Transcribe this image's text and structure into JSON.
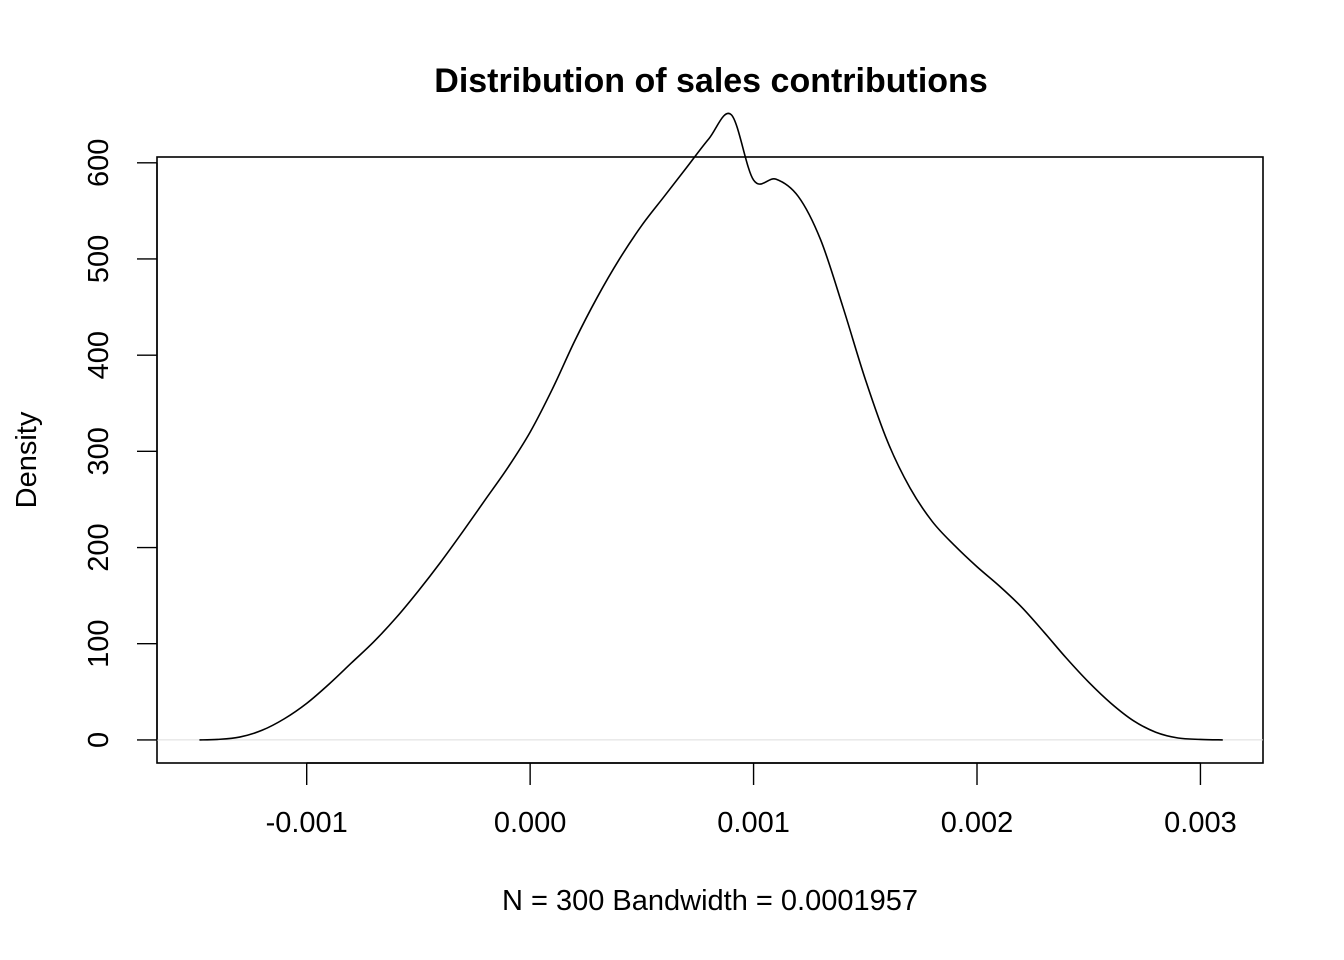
{
  "chart_data": {
    "type": "line",
    "title": "Distribution of sales contributions",
    "xlabel": "N = 300   Bandwidth = 0.0001957",
    "ylabel": "Density",
    "xlim": [
      -0.00167,
      0.00328
    ],
    "ylim": [
      -24,
      606
    ],
    "x_ticks": [
      {
        "value": -0.001,
        "label": "-0.001"
      },
      {
        "value": 0.0,
        "label": "0.000"
      },
      {
        "value": 0.001,
        "label": "0.001"
      },
      {
        "value": 0.002,
        "label": "0.002"
      },
      {
        "value": 0.003,
        "label": "0.003"
      }
    ],
    "y_ticks": [
      {
        "value": 0,
        "label": "0"
      },
      {
        "value": 100,
        "label": "100"
      },
      {
        "value": 200,
        "label": "200"
      },
      {
        "value": 300,
        "label": "300"
      },
      {
        "value": 400,
        "label": "400"
      },
      {
        "value": 500,
        "label": "500"
      },
      {
        "value": 600,
        "label": "600"
      }
    ],
    "series": [
      {
        "points": [
          [
            -0.00148,
            0
          ],
          [
            -0.0014,
            0.5
          ],
          [
            -0.0013,
            3
          ],
          [
            -0.0012,
            10
          ],
          [
            -0.0011,
            22
          ],
          [
            -0.001,
            38
          ],
          [
            -0.0009,
            58
          ],
          [
            -0.0008,
            80
          ],
          [
            -0.0007,
            102
          ],
          [
            -0.0006,
            127
          ],
          [
            -0.0005,
            155
          ],
          [
            -0.0004,
            185
          ],
          [
            -0.0003,
            217
          ],
          [
            -0.0002,
            250
          ],
          [
            -0.0001,
            283
          ],
          [
            0.0,
            320
          ],
          [
            0.0001,
            365
          ],
          [
            0.0002,
            415
          ],
          [
            0.0003,
            460
          ],
          [
            0.0004,
            500
          ],
          [
            0.0005,
            535
          ],
          [
            0.0006,
            565
          ],
          [
            0.0007,
            595
          ],
          [
            0.0008,
            625
          ],
          [
            0.0009,
            650
          ],
          [
            0.001,
            582
          ],
          [
            0.0011,
            583
          ],
          [
            0.0012,
            565
          ],
          [
            0.0013,
            520
          ],
          [
            0.0014,
            450
          ],
          [
            0.0015,
            375
          ],
          [
            0.0016,
            310
          ],
          [
            0.0017,
            262
          ],
          [
            0.0018,
            227
          ],
          [
            0.0019,
            202
          ],
          [
            0.002,
            180
          ],
          [
            0.0021,
            160
          ],
          [
            0.0022,
            138
          ],
          [
            0.0023,
            112
          ],
          [
            0.0024,
            85
          ],
          [
            0.0025,
            60
          ],
          [
            0.0026,
            38
          ],
          [
            0.0027,
            20
          ],
          [
            0.0028,
            8
          ],
          [
            0.0029,
            2
          ],
          [
            0.003,
            0.5
          ],
          [
            0.0031,
            0
          ]
        ]
      }
    ]
  }
}
